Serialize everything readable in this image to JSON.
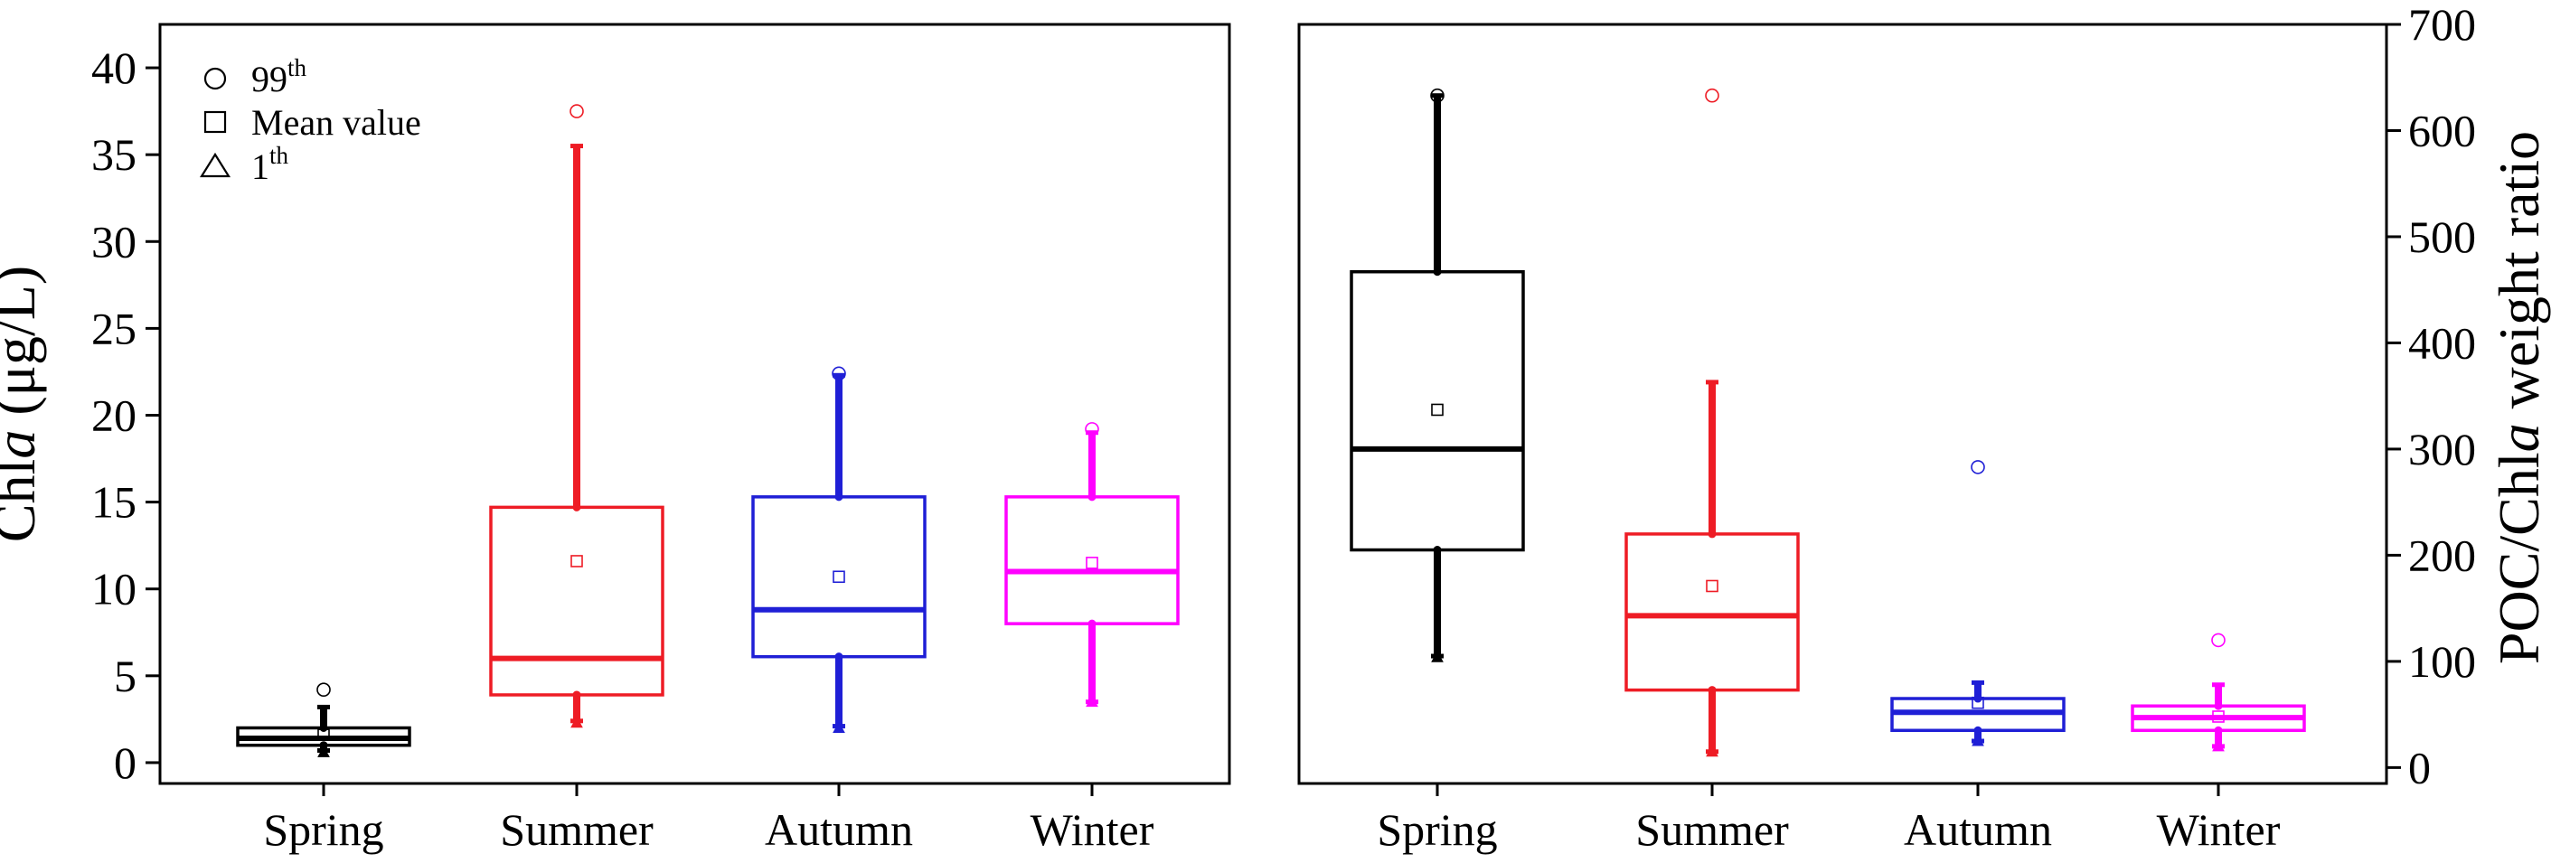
{
  "legend": {
    "items": [
      {
        "symbol": "circle",
        "label": "99",
        "sup": "th"
      },
      {
        "symbol": "square",
        "label": "Mean value",
        "sup": ""
      },
      {
        "symbol": "triangle",
        "label": "1",
        "sup": "th"
      }
    ]
  },
  "chart_data": [
    {
      "type": "box",
      "ylabel_pre": "Chl",
      "ylabel_italic": "a",
      "ylabel_post": " (μg/L)",
      "yaxis_side": "left",
      "ylim": [
        -1.2,
        42.5
      ],
      "yticks": [
        0,
        5,
        10,
        15,
        20,
        25,
        30,
        35,
        40
      ],
      "categories": [
        "Spring",
        "Summer",
        "Autumn",
        "Winter"
      ],
      "colors": [
        "#000000",
        "#ee1c25",
        "#1f1fd6",
        "#ff00ff"
      ],
      "series": [
        {
          "category": "Spring",
          "whisker_low": 0.7,
          "q1": 1.0,
          "median": 1.4,
          "q3": 2.0,
          "whisker_high": 3.2,
          "mean": 1.6,
          "p99": 4.2,
          "p1": 0.6
        },
        {
          "category": "Summer",
          "whisker_low": 2.4,
          "q1": 3.9,
          "median": 6.0,
          "q3": 14.7,
          "whisker_high": 35.5,
          "mean": 11.6,
          "p99": 37.5,
          "p1": 2.3
        },
        {
          "category": "Autumn",
          "whisker_low": 2.1,
          "q1": 6.1,
          "median": 8.8,
          "q3": 15.3,
          "whisker_high": 22.3,
          "mean": 10.7,
          "p99": 22.4,
          "p1": 2.0
        },
        {
          "category": "Winter",
          "whisker_low": 3.5,
          "q1": 8.0,
          "median": 11.0,
          "q3": 15.3,
          "whisker_high": 19.0,
          "mean": 11.5,
          "p99": 19.2,
          "p1": 3.5
        }
      ]
    },
    {
      "type": "box",
      "ylabel_pre": "POC/Chl",
      "ylabel_italic": "a",
      "ylabel_post": " weight ratio",
      "yaxis_side": "right",
      "ylim": [
        -15,
        700
      ],
      "yticks": [
        0,
        100,
        200,
        300,
        400,
        500,
        600,
        700
      ],
      "categories": [
        "Spring",
        "Summer",
        "Autumn",
        "Winter"
      ],
      "colors": [
        "#000000",
        "#ee1c25",
        "#1f1fd6",
        "#ff00ff"
      ],
      "series": [
        {
          "category": "Spring",
          "whisker_low": 105,
          "q1": 205,
          "median": 300,
          "q3": 467,
          "whisker_high": 633,
          "mean": 337,
          "p99": 633,
          "p1": 104
        },
        {
          "category": "Summer",
          "whisker_low": 15,
          "q1": 73,
          "median": 143,
          "q3": 220,
          "whisker_high": 363,
          "mean": 171,
          "p99": 633,
          "p1": 15
        },
        {
          "category": "Autumn",
          "whisker_low": 25,
          "q1": 35,
          "median": 52,
          "q3": 65,
          "whisker_high": 80,
          "mean": 61,
          "p99": 283,
          "p1": 25
        },
        {
          "category": "Winter",
          "whisker_low": 20,
          "q1": 35,
          "median": 47,
          "q3": 58,
          "whisker_high": 78,
          "mean": 48,
          "p99": 120,
          "p1": 20
        }
      ]
    }
  ]
}
